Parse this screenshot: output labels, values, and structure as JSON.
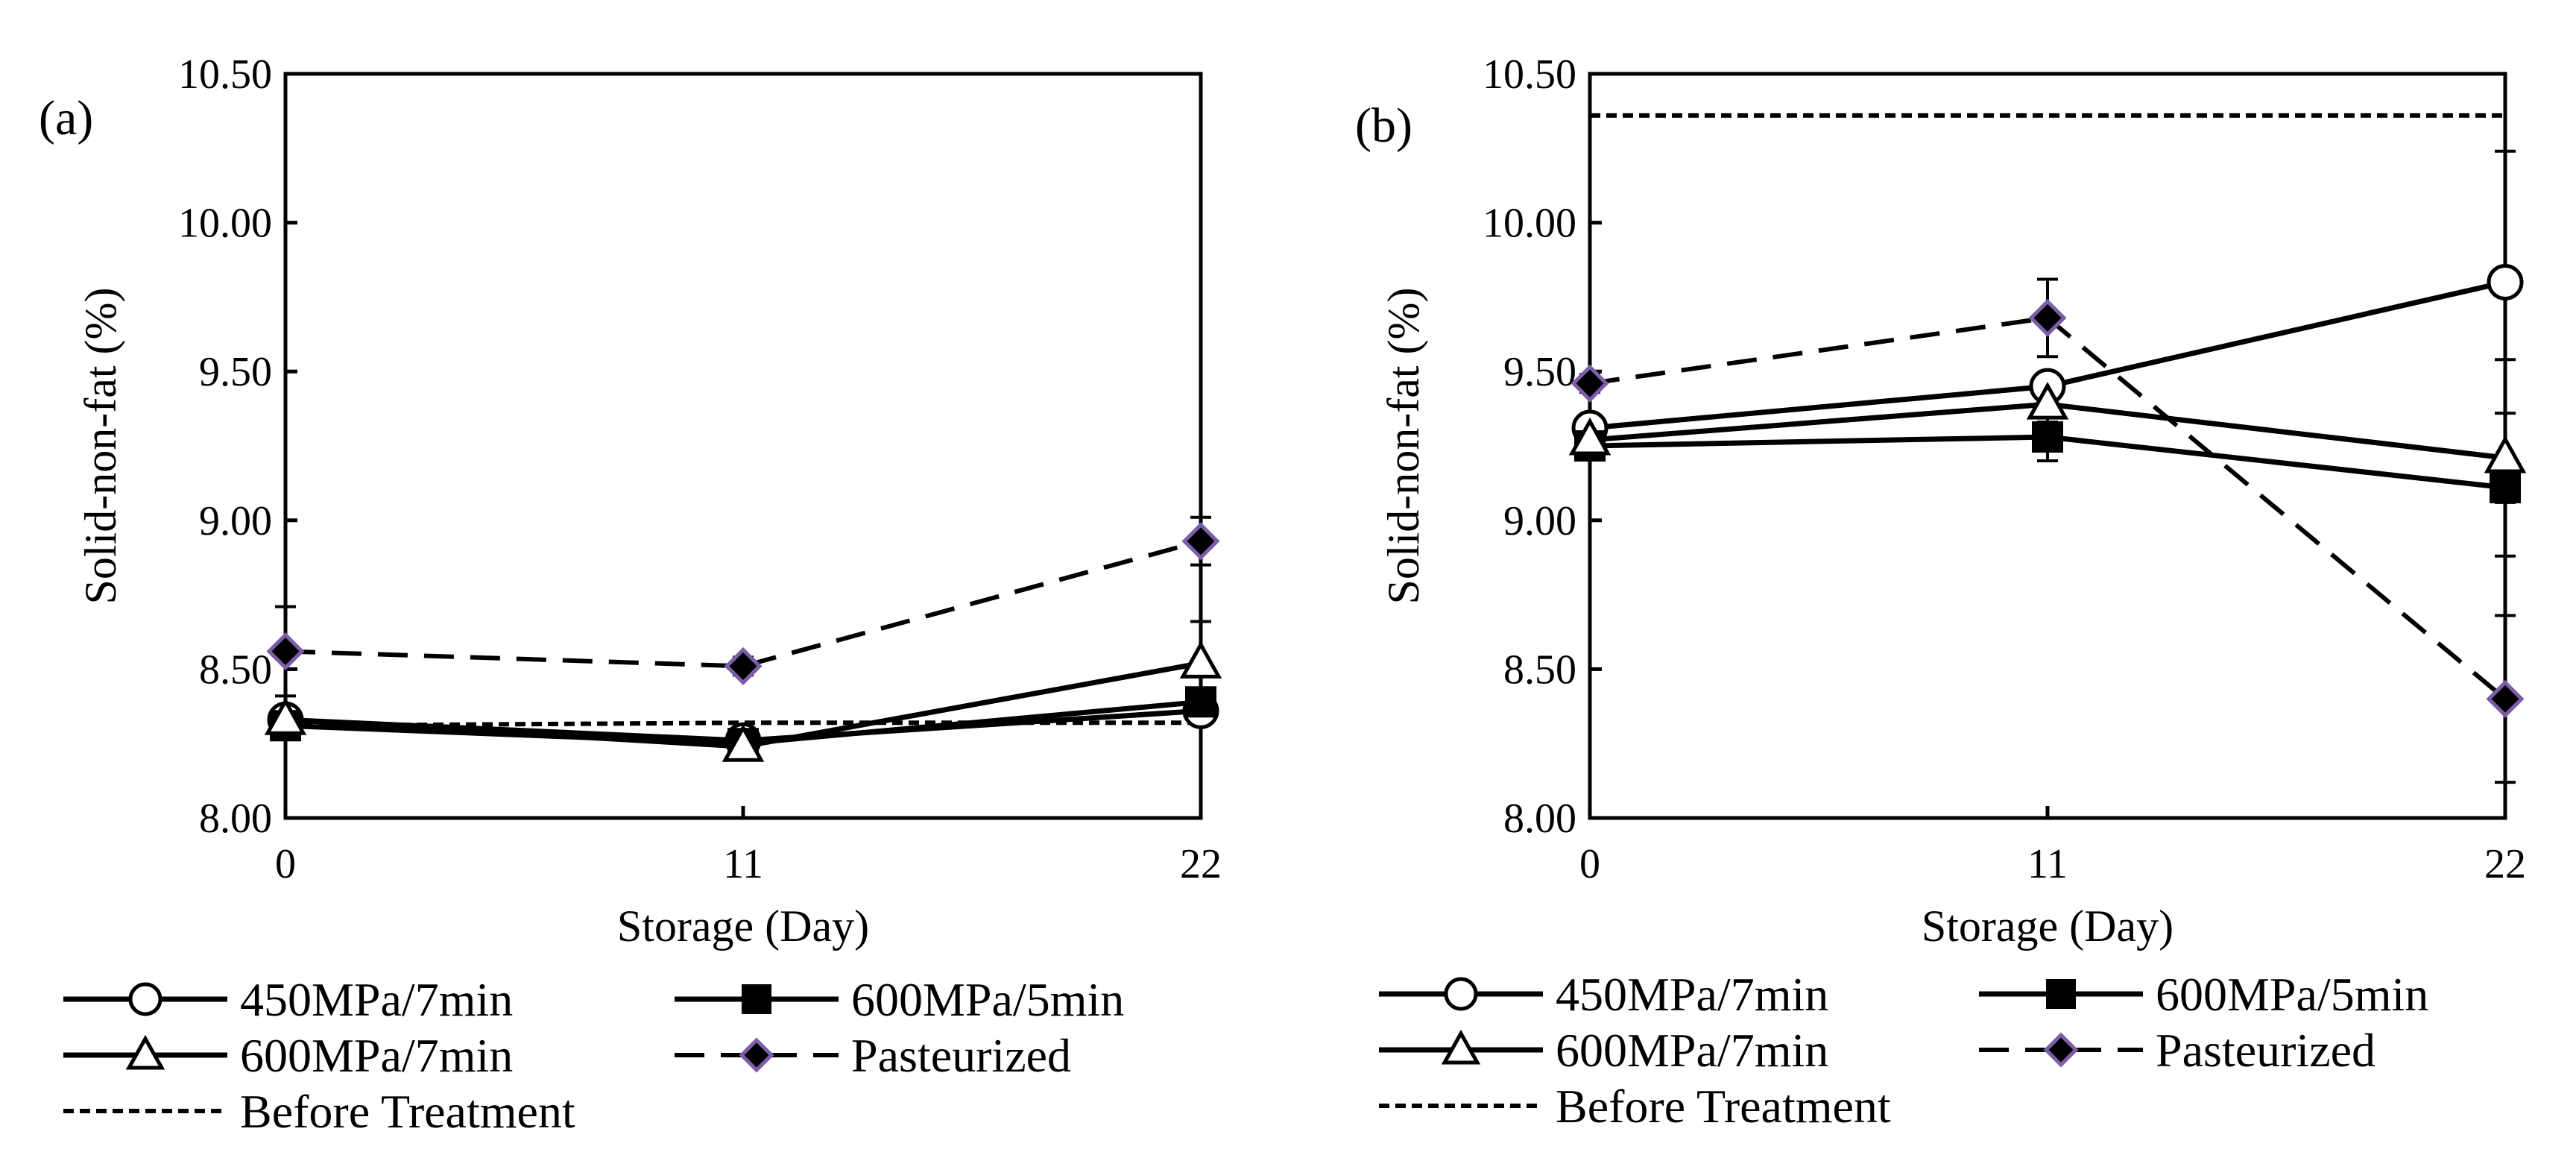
{
  "chart_data": [
    {
      "id": "a",
      "type": "line",
      "panel_label": "(a)",
      "xlabel": "Storage (Day)",
      "ylabel": "Solid-non-fat (%)",
      "x": [
        0,
        11,
        22
      ],
      "x_ticks": [
        "0",
        "11",
        "22"
      ],
      "ylim": [
        8.0,
        10.5
      ],
      "y_ticks": [
        "8.00",
        "8.50",
        "9.00",
        "9.50",
        "10.00",
        "10.50"
      ],
      "grid": false,
      "series": [
        {
          "name": "450MPa/7min",
          "values": [
            8.33,
            8.26,
            8.36
          ],
          "errors": [
            0.02,
            0.04,
            0.02
          ],
          "marker": "circle-open",
          "line": "solid"
        },
        {
          "name": "600MPa/5min",
          "values": [
            8.31,
            8.25,
            8.39
          ],
          "errors": [
            0.02,
            0.03,
            0.03
          ],
          "marker": "square-filled",
          "line": "solid"
        },
        {
          "name": "600MPa/7min",
          "values": [
            8.33,
            8.24,
            8.52
          ],
          "errors": [
            0.02,
            0.03,
            0.14
          ],
          "marker": "triangle-open",
          "line": "solid"
        },
        {
          "name": "Pasteurized",
          "values": [
            8.56,
            8.51,
            8.93
          ],
          "errors": [
            0.15,
            0.03,
            0.08
          ],
          "marker": "diamond-purple",
          "line": "dashed"
        },
        {
          "name": "Before Treatment",
          "values": [
            8.31,
            8.32,
            8.32
          ],
          "errors": [
            0,
            0,
            0
          ],
          "marker": "none",
          "line": "dotted"
        }
      ]
    },
    {
      "id": "b",
      "type": "line",
      "panel_label": "(b)",
      "xlabel": "Storage (Day)",
      "ylabel": "Solid-non-fat (%)",
      "x": [
        0,
        11,
        22
      ],
      "x_ticks": [
        "0",
        "11",
        "22"
      ],
      "ylim": [
        8.0,
        10.5
      ],
      "y_ticks": [
        "8.00",
        "8.50",
        "9.00",
        "9.50",
        "10.00",
        "10.50"
      ],
      "grid": false,
      "series": [
        {
          "name": "450MPa/7min",
          "values": [
            9.31,
            9.45,
            9.8
          ],
          "errors": [
            0.02,
            0.04,
            0.44
          ],
          "marker": "circle-open",
          "line": "solid"
        },
        {
          "name": "600MPa/5min",
          "values": [
            9.25,
            9.28,
            9.11
          ],
          "errors": [
            0.02,
            0.08,
            0.05
          ],
          "marker": "square-filled",
          "line": "solid"
        },
        {
          "name": "600MPa/7min",
          "values": [
            9.27,
            9.39,
            9.21
          ],
          "errors": [
            0.02,
            0.06,
            0.33
          ],
          "marker": "triangle-open",
          "line": "solid"
        },
        {
          "name": "Pasteurized",
          "values": [
            9.46,
            9.68,
            8.4
          ],
          "errors": [
            0.03,
            0.13,
            0.28
          ],
          "marker": "diamond-purple",
          "line": "dashed"
        },
        {
          "name": "Before Treatment",
          "values": [
            10.36,
            10.36,
            10.36
          ],
          "errors": [
            0,
            0,
            0
          ],
          "marker": "none",
          "line": "dotted"
        }
      ]
    }
  ],
  "legend": {
    "items": [
      "450MPa/7min",
      "600MPa/5min",
      "600MPa/7min",
      "Pasteurized",
      "Before Treatment"
    ]
  },
  "colors": {
    "line": "#000000",
    "diamond_fill": "#000000",
    "diamond_edge": "#7b5ea7",
    "background": "#ffffff"
  }
}
